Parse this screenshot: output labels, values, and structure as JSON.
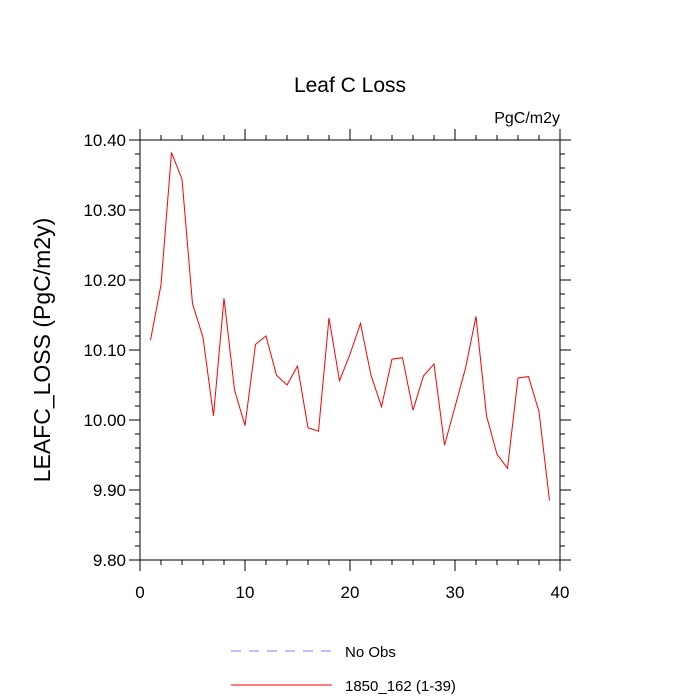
{
  "chart_data": {
    "type": "line",
    "title": "Leaf C Loss",
    "units_label": "PgC/m2y",
    "xlabel": "",
    "ylabel": "LEAFC_LOSS  (PgC/m2y)",
    "xlim": [
      0,
      40
    ],
    "ylim": [
      9.8,
      10.4
    ],
    "x_ticks": [
      0,
      10,
      20,
      30,
      40
    ],
    "x_tick_labels": [
      "0",
      "10",
      "20",
      "30",
      "40"
    ],
    "y_ticks": [
      9.8,
      9.9,
      10.0,
      10.1,
      10.2,
      10.3,
      10.4
    ],
    "y_tick_labels": [
      "9.80",
      "9.90",
      "10.00",
      "10.10",
      "10.20",
      "10.30",
      "10.40"
    ],
    "grid": false,
    "legend_position": "bottom-center",
    "series": [
      {
        "name": "1850_162 (1-39)",
        "color": "#ff0000",
        "style": "solid",
        "x": [
          1,
          2,
          3,
          4,
          5,
          6,
          7,
          8,
          9,
          10,
          11,
          12,
          13,
          14,
          15,
          16,
          17,
          18,
          19,
          20,
          21,
          22,
          23,
          24,
          25,
          26,
          27,
          28,
          29,
          30,
          31,
          32,
          33,
          34,
          35,
          36,
          37,
          38,
          39
        ],
        "values": [
          10.114,
          10.193,
          10.382,
          10.344,
          10.166,
          10.118,
          10.006,
          10.174,
          10.043,
          9.992,
          10.108,
          10.12,
          10.064,
          10.05,
          10.077,
          9.989,
          9.984,
          10.146,
          10.056,
          10.094,
          10.138,
          10.064,
          10.019,
          10.087,
          10.089,
          10.014,
          10.063,
          10.08,
          9.964,
          10.019,
          10.074,
          10.148,
          10.006,
          9.951,
          9.931,
          10.06,
          10.062,
          10.012,
          9.885
        ]
      }
    ],
    "legend": [
      {
        "label": "No Obs",
        "color": "#8080ff",
        "style": "dashed"
      },
      {
        "label": "1850_162 (1-39)",
        "color": "#ff0000",
        "style": "solid"
      }
    ]
  }
}
